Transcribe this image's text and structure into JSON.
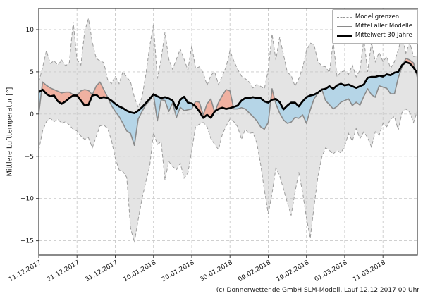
{
  "chart_data": {
    "type": "line",
    "title": "",
    "ylabel": "Mittlere Lufttemperatur [°]",
    "grid": true,
    "legend_position": "upper right",
    "ylim": [
      -16.7,
      12.5
    ],
    "yticks": [
      10,
      5,
      0,
      -5,
      -10,
      -15
    ],
    "x_tick_labels": [
      "11.12.2017",
      "21.12.2017",
      "31.12.2017",
      "10.01.2018",
      "20.01.2018",
      "30.01.2018",
      "09.02.2018",
      "19.02.2018",
      "01.03.2018",
      "11.03.2018"
    ],
    "x_tick_positions_days": [
      0,
      10,
      20,
      30,
      40,
      50,
      60,
      70,
      80,
      90
    ],
    "colors": {
      "envelope_fill": "#e4e4e4",
      "warm_anomaly_fill": "#f0b1a1",
      "cold_anomaly_fill": "#b5d5e7",
      "bounds_line": "#9b9b9b",
      "ensemble_mean_line": "#8a8a8a",
      "climate_mean_line": "#000000",
      "grid_line": "#c9c9c9",
      "frame": "#3c3c3c"
    },
    "legend": [
      {
        "label": "Modellgrenzen",
        "style": "dashed"
      },
      {
        "label": "Mittel aller Modelle",
        "style": "solid"
      },
      {
        "label": "Mittelwert 30 Jahre",
        "style": "bold"
      }
    ],
    "series": [
      {
        "name": "Modellgrenzen (obere Grenze)",
        "role": "upper_bound",
        "values": [
          3.8,
          5.5,
          7.5,
          6.0,
          6.3,
          5.8,
          6.4,
          5.7,
          6.1,
          10.9,
          6.5,
          5.8,
          9.8,
          11.3,
          8.5,
          6.6,
          6.3,
          6.1,
          4.1,
          3.6,
          4.5,
          3.6,
          5.0,
          4.4,
          3.8,
          2.0,
          0.8,
          2.0,
          4.7,
          8.0,
          10.6,
          4.2,
          6.5,
          9.7,
          6.5,
          5.3,
          6.5,
          7.7,
          6.5,
          5.2,
          8.1,
          5.4,
          5.6,
          4.9,
          3.4,
          4.6,
          5.0,
          3.5,
          4.5,
          5.6,
          7.5,
          6.3,
          5.3,
          4.5,
          4.2,
          3.8,
          3.1,
          3.5,
          3.3,
          3.0,
          5.2,
          9.5,
          6.4,
          9.1,
          7.0,
          4.9,
          4.6,
          3.3,
          4.2,
          5.5,
          7.5,
          8.4,
          8.2,
          6.2,
          5.7,
          5.6,
          4.9,
          8.6,
          4.4,
          5.0,
          5.1,
          4.7,
          5.8,
          4.4,
          5.2,
          8.9,
          5.0,
          8.5,
          6.2,
          7.3,
          6.2,
          6.8,
          5.4,
          6.2,
          7.6,
          9.3,
          7.2,
          8.5,
          6.8,
          6.9
        ]
      },
      {
        "name": "Modellgrenzen (untere Grenze)",
        "role": "lower_bound",
        "values": [
          -4.3,
          -2.0,
          -0.9,
          -0.5,
          -0.9,
          -0.6,
          -1.1,
          -0.9,
          -1.3,
          -1.8,
          -2.0,
          -2.6,
          -3.0,
          -2.8,
          -4.0,
          -2.7,
          -1.4,
          -1.3,
          -1.7,
          -3.1,
          -5.2,
          -6.6,
          -6.8,
          -7.5,
          -13.5,
          -15.2,
          -12.5,
          -10.0,
          -8.0,
          -6.2,
          -2.2,
          -3.6,
          -3.3,
          -7.8,
          -5.6,
          -6.2,
          -6.6,
          -5.8,
          -7.6,
          -7.0,
          -4.3,
          -1.5,
          -1.2,
          -1.0,
          -1.5,
          -2.9,
          -3.6,
          -4.2,
          -2.4,
          -1.4,
          -0.6,
          -0.9,
          -1.5,
          -3.0,
          -1.8,
          -2.3,
          -2.2,
          -3.4,
          -5.9,
          -9.0,
          -11.8,
          -9.4,
          -6.4,
          -7.3,
          -8.9,
          -10.5,
          -12.0,
          -9.3,
          -6.9,
          -9.3,
          -12.3,
          -14.7,
          -10.9,
          -7.4,
          -5.1,
          -4.0,
          -4.3,
          -4.7,
          -4.3,
          -4.6,
          -3.8,
          -2.3,
          -3.2,
          -1.7,
          -2.9,
          -2.1,
          -2.8,
          -3.9,
          -2.1,
          -2.5,
          -1.1,
          -1.5,
          -0.6,
          -0.3,
          -1.9,
          0.2,
          0.6,
          0.2,
          -1.0,
          0.4
        ]
      },
      {
        "name": "Mittel aller Modelle",
        "role": "ensemble_mean",
        "values": [
          0.0,
          3.8,
          3.4,
          3.1,
          2.9,
          2.7,
          2.5,
          2.6,
          2.6,
          2.3,
          2.2,
          2.75,
          2.9,
          2.8,
          2.3,
          3.3,
          3.8,
          2.9,
          2.0,
          1.0,
          0.3,
          -0.3,
          -1.1,
          -2.0,
          -2.3,
          -3.7,
          -0.6,
          0.3,
          1.1,
          1.6,
          2.3,
          -0.8,
          1.7,
          1.6,
          0.3,
          1.3,
          -0.4,
          0.8,
          0.4,
          0.5,
          0.6,
          1.5,
          1.4,
          -0.1,
          1.2,
          1.8,
          0.2,
          1.35,
          2.2,
          2.9,
          2.75,
          0.6,
          0.6,
          0.75,
          0.6,
          0.15,
          -0.3,
          -0.8,
          -1.5,
          -1.8,
          -1.0,
          3.0,
          1.2,
          0.1,
          -0.7,
          -1.1,
          -0.95,
          -0.4,
          -0.5,
          -0.1,
          -1.1,
          0.5,
          1.8,
          2.5,
          2.95,
          1.6,
          1.1,
          0.6,
          0.9,
          1.4,
          1.6,
          1.8,
          1.0,
          1.4,
          1.05,
          2.1,
          3.0,
          2.3,
          2.0,
          3.35,
          3.2,
          3.05,
          2.4,
          2.4,
          4.3,
          5.6,
          6.6,
          6.4,
          6.05,
          4.3
        ]
      },
      {
        "name": "Mittelwert 30 Jahre",
        "role": "climate_mean",
        "values": [
          2.6,
          2.9,
          2.4,
          2.1,
          2.2,
          1.5,
          1.2,
          1.5,
          1.9,
          2.2,
          2.2,
          1.6,
          1.0,
          1.1,
          2.2,
          2.3,
          1.9,
          2.0,
          1.9,
          1.6,
          1.2,
          0.9,
          0.7,
          0.4,
          0.2,
          0.1,
          0.4,
          0.8,
          1.3,
          1.8,
          2.35,
          2.1,
          1.9,
          2.0,
          1.85,
          1.6,
          0.6,
          1.7,
          2.05,
          1.35,
          1.25,
          0.9,
          0.3,
          -0.45,
          -0.1,
          -0.45,
          0.3,
          0.6,
          0.75,
          0.6,
          0.7,
          0.85,
          1.0,
          1.6,
          1.9,
          1.9,
          2.0,
          1.9,
          1.9,
          1.5,
          1.35,
          1.7,
          1.8,
          1.4,
          0.55,
          1.0,
          1.35,
          1.35,
          0.9,
          1.5,
          2.0,
          2.2,
          2.3,
          2.55,
          2.9,
          3.0,
          3.3,
          3.0,
          3.4,
          3.6,
          3.4,
          3.5,
          3.3,
          3.1,
          3.3,
          3.5,
          4.3,
          4.4,
          4.4,
          4.55,
          4.45,
          4.7,
          4.6,
          4.9,
          5.0,
          5.8,
          6.15,
          6.0,
          5.5,
          4.8
        ]
      }
    ],
    "copyright": "(c) Donnerwetter.de GmbH SLM-Modell, Lauf 12.12.2017 00 Uhr"
  }
}
